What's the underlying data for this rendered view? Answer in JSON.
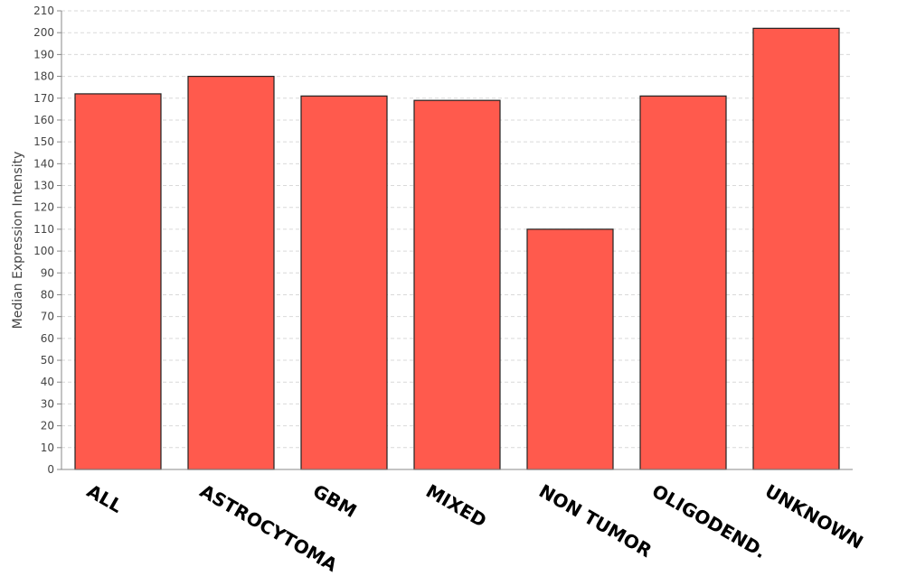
{
  "chart_data": {
    "type": "bar",
    "categories": [
      "ALL",
      "ASTROCYTOMA",
      "GBM",
      "MIXED",
      "NON TUMOR",
      "OLIGODEND.",
      "UNKNOWN"
    ],
    "values": [
      172,
      180,
      171,
      169,
      110,
      171,
      202
    ],
    "ylabel": "Median Expression Intensity",
    "ylim": [
      0,
      210
    ],
    "ytick_step": 10,
    "bar_color": "#ff5a4d",
    "bar_edge_color": "#222222",
    "grid": true,
    "legend": "none"
  }
}
